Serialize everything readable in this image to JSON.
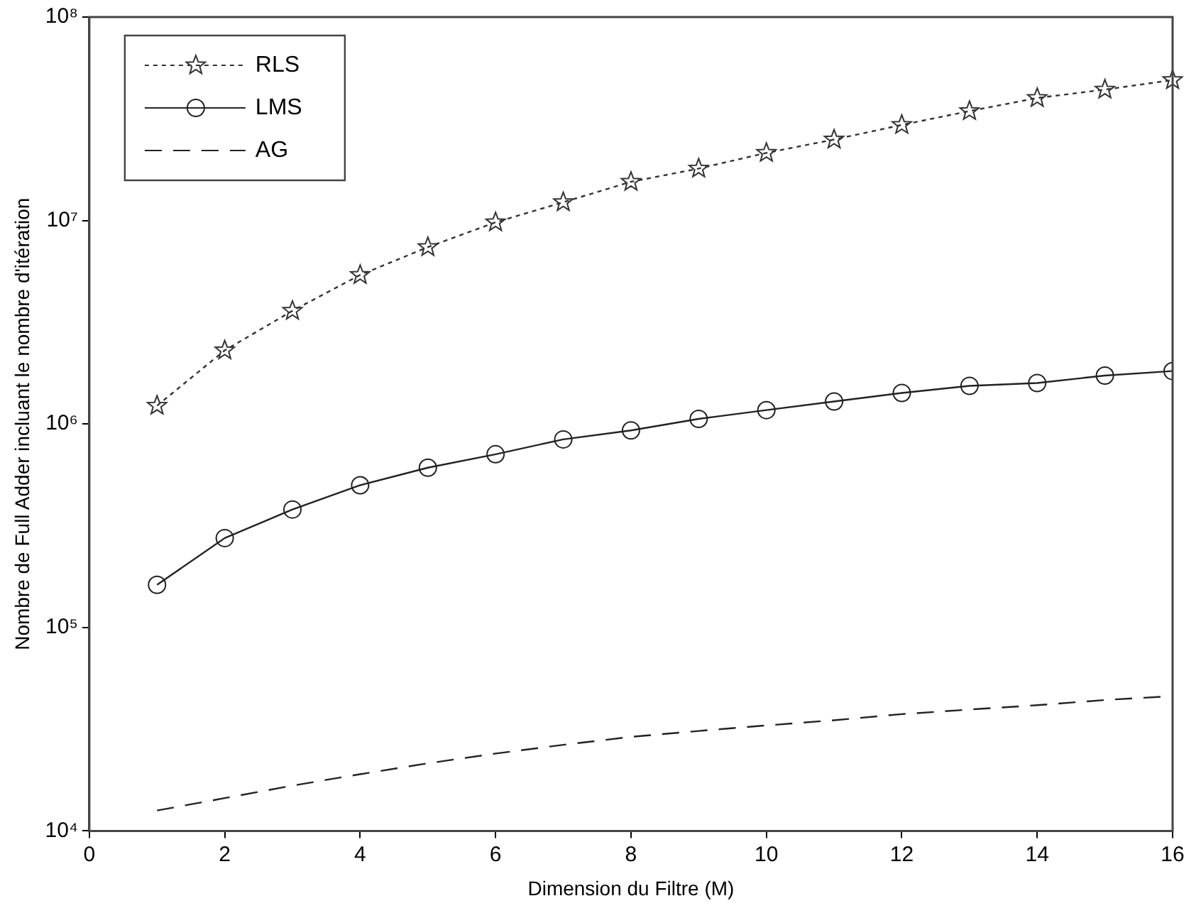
{
  "chart_data": {
    "type": "line",
    "xlabel": "Dimension du Filtre (M)",
    "ylabel": "Nombre de Full Adder incluant le nombre d'itération",
    "x": [
      1,
      2,
      3,
      4,
      5,
      6,
      7,
      8,
      9,
      10,
      11,
      12,
      13,
      14,
      15,
      16
    ],
    "series": [
      {
        "name": "RLS",
        "color": "#333333",
        "marker": "star",
        "line_style": "dotted",
        "values": [
          1230000,
          2300000,
          3600000,
          5400000,
          7400000,
          9800000,
          12300000,
          15500000,
          18000000,
          21500000,
          25000000,
          29500000,
          34500000,
          40000000,
          44000000,
          49000000
        ]
      },
      {
        "name": "LMS",
        "color": "#222222",
        "marker": "circle",
        "line_style": "solid",
        "values": [
          162000,
          275000,
          380000,
          500000,
          610000,
          710000,
          840000,
          930000,
          1060000,
          1170000,
          1290000,
          1420000,
          1540000,
          1590000,
          1730000,
          1820000
        ]
      },
      {
        "name": "AG",
        "color": "#222222",
        "marker": "none",
        "line_style": "dashed",
        "values": [
          12600,
          14500,
          16700,
          19000,
          21500,
          24000,
          26500,
          29000,
          31000,
          33000,
          35000,
          37500,
          39500,
          41500,
          44000,
          46000
        ]
      }
    ],
    "log": "y",
    "xlim": [
      0,
      16
    ],
    "xticks": [
      0,
      2,
      4,
      6,
      8,
      10,
      12,
      14,
      16
    ],
    "ylim": [
      10000,
      100000000
    ],
    "yticks": [
      {
        "value": 10000,
        "label": "10⁴"
      },
      {
        "value": 100000,
        "label": "10⁵"
      },
      {
        "value": 1000000,
        "label": "10⁶"
      },
      {
        "value": 10000000,
        "label": "10⁷"
      },
      {
        "value": 100000000,
        "label": "10⁸"
      }
    ],
    "grid": false,
    "legend": "top left"
  }
}
